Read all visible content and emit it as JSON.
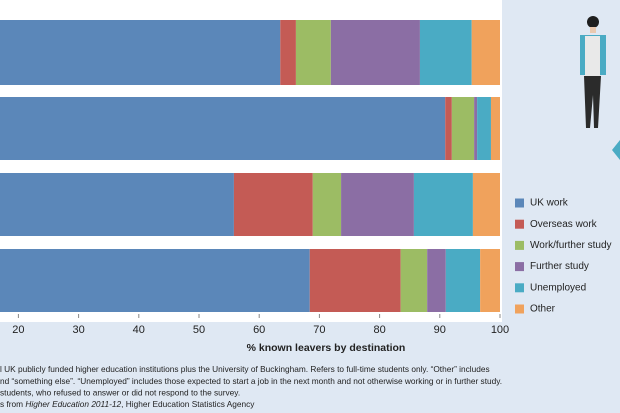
{
  "chart_data": {
    "type": "stacked-bar-horizontal",
    "x_label": "% known leavers by destination",
    "categories": [
      null,
      null,
      null,
      null
    ],
    "series": [
      {
        "name": "UK work",
        "color": "#5b87b9",
        "values": [
          63.5,
          90.9,
          55.8,
          68.4
        ]
      },
      {
        "name": "Overseas work",
        "color": "#c45b55",
        "values": [
          2.6,
          1.1,
          13.1,
          15.1
        ]
      },
      {
        "name": "Work/further study",
        "color": "#9cbc64",
        "values": [
          5.8,
          3.7,
          4.7,
          4.4
        ]
      },
      {
        "name": "Further study",
        "color": "#8b6ea4",
        "values": [
          14.8,
          0.5,
          12.1,
          3.1
        ]
      },
      {
        "name": "Unemployed",
        "color": "#4aabc4",
        "values": [
          8.6,
          2.3,
          9.8,
          5.7
        ]
      },
      {
        "name": "Other",
        "color": "#f0a25c",
        "values": [
          4.7,
          1.5,
          4.5,
          3.3
        ]
      }
    ],
    "xlim": [
      0,
      100
    ],
    "xticks": [
      20,
      30,
      40,
      50,
      60,
      70,
      80,
      90,
      100
    ],
    "legend": "right",
    "notes": [
      "l UK publicly funded higher education institutions plus the University of Buckingham. Refers to full-time students only. “Other” includes",
      "nd “something else”. “Unemployed” includes those expected to start a job in the next month and not otherwise working or in further study.",
      "students, who refused to answer or did not respond to the survey."
    ],
    "source": {
      "prefix": "s from ",
      "italic": "Higher Education 2011-12",
      "suffix": ", Higher Education Statistics Agency"
    }
  }
}
